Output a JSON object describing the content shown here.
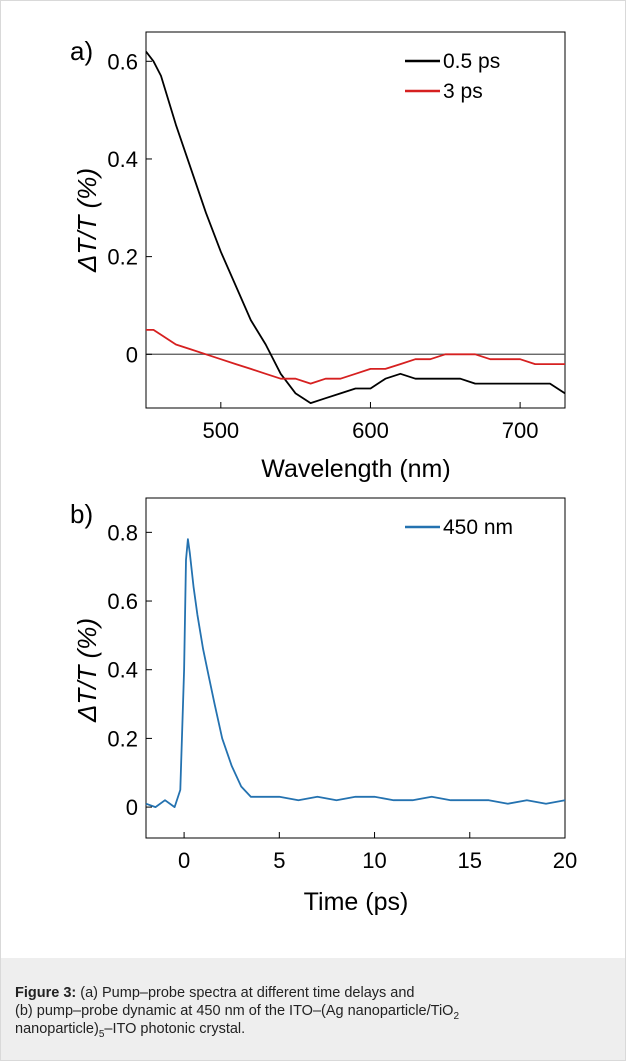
{
  "chart_data": [
    {
      "panel_label": "a)",
      "type": "line",
      "xlabel": "Wavelength (nm)",
      "ylabel": "ΔT/T (%)",
      "xlim": [
        450,
        730
      ],
      "ylim": [
        -0.11,
        0.66
      ],
      "xticks": [
        500,
        600,
        700
      ],
      "yticks": [
        0,
        0.2,
        0.4,
        0.6
      ],
      "zero_line": true,
      "legend_position": "top-right",
      "series": [
        {
          "name": "0.5 ps",
          "color": "#000000",
          "x": [
            450,
            455,
            460,
            470,
            480,
            490,
            500,
            510,
            520,
            530,
            540,
            550,
            560,
            570,
            580,
            590,
            600,
            610,
            620,
            630,
            640,
            650,
            660,
            670,
            680,
            690,
            700,
            710,
            720,
            730
          ],
          "y": [
            0.62,
            0.6,
            0.57,
            0.47,
            0.38,
            0.29,
            0.21,
            0.14,
            0.07,
            0.02,
            -0.04,
            -0.08,
            -0.1,
            -0.09,
            -0.08,
            -0.07,
            -0.07,
            -0.05,
            -0.04,
            -0.05,
            -0.05,
            -0.05,
            -0.05,
            -0.06,
            -0.06,
            -0.06,
            -0.06,
            -0.06,
            -0.06,
            -0.08
          ]
        },
        {
          "name": "3 ps",
          "color": "#d62020",
          "x": [
            450,
            455,
            460,
            470,
            480,
            490,
            500,
            510,
            520,
            530,
            540,
            550,
            560,
            570,
            580,
            590,
            600,
            610,
            620,
            630,
            640,
            650,
            660,
            670,
            680,
            690,
            700,
            710,
            720,
            730
          ],
          "y": [
            0.05,
            0.05,
            0.04,
            0.02,
            0.01,
            0.0,
            -0.01,
            -0.02,
            -0.03,
            -0.04,
            -0.05,
            -0.05,
            -0.06,
            -0.05,
            -0.05,
            -0.04,
            -0.03,
            -0.03,
            -0.02,
            -0.01,
            -0.01,
            0.0,
            0.0,
            0.0,
            -0.01,
            -0.01,
            -0.01,
            -0.02,
            -0.02,
            -0.02
          ]
        }
      ]
    },
    {
      "panel_label": "b)",
      "type": "line",
      "xlabel": "Time (ps)",
      "ylabel": "ΔT/T (%)",
      "xlim": [
        -2,
        20
      ],
      "ylim": [
        -0.09,
        0.9
      ],
      "xticks": [
        0,
        5,
        10,
        15,
        20
      ],
      "yticks": [
        0,
        0.2,
        0.4,
        0.6,
        0.8
      ],
      "legend_position": "top-right",
      "series": [
        {
          "name": "450 nm",
          "color": "#2472b0",
          "x": [
            -2,
            -1.5,
            -1,
            -0.5,
            -0.2,
            0,
            0.1,
            0.2,
            0.3,
            0.5,
            0.7,
            1,
            1.3,
            1.6,
            2,
            2.5,
            3,
            3.5,
            4,
            5,
            6,
            7,
            8,
            9,
            10,
            11,
            12,
            13,
            14,
            15,
            16,
            17,
            18,
            19,
            20
          ],
          "y": [
            0.01,
            0.0,
            0.02,
            0.0,
            0.05,
            0.4,
            0.72,
            0.78,
            0.74,
            0.64,
            0.56,
            0.46,
            0.38,
            0.3,
            0.2,
            0.12,
            0.06,
            0.03,
            0.03,
            0.03,
            0.02,
            0.03,
            0.02,
            0.03,
            0.03,
            0.02,
            0.02,
            0.03,
            0.02,
            0.02,
            0.02,
            0.01,
            0.02,
            0.01,
            0.02
          ]
        }
      ]
    }
  ],
  "caption": {
    "label": "Figure 3:",
    "line1": " (a) Pump–probe spectra at different time delays and",
    "line2a": "(b) pump–probe dynamic at 450 nm of the ITO–(Ag nanoparticle/TiO",
    "sub1": "2",
    "line3a": "nanoparticle)",
    "sub2": "5",
    "line3b": "–ITO photonic crystal."
  },
  "colors": {
    "axis": "#000000",
    "zero_line": "#555555",
    "caption_bg": "#eeeeee"
  }
}
